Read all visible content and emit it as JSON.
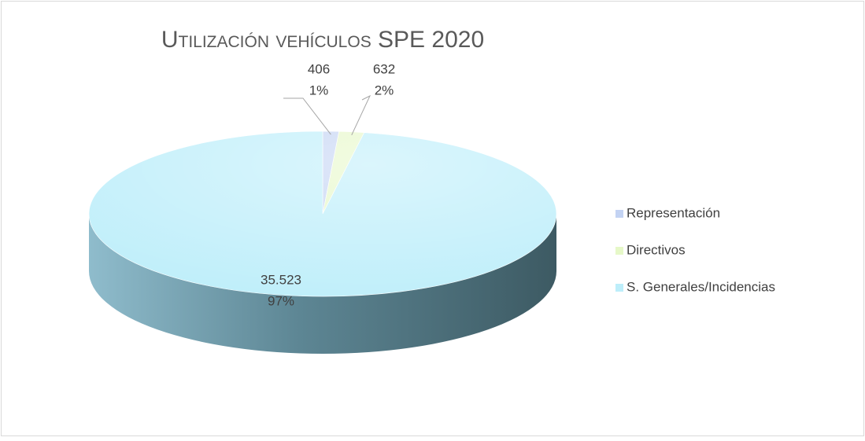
{
  "chart_data": {
    "type": "pie3d",
    "title": "Utilización vehículos SPE 2020",
    "categories": [
      "Representación",
      "Directivos",
      "S. Generales/Incidencias"
    ],
    "values": [
      406,
      632,
      35523
    ],
    "value_labels": [
      "406",
      "632",
      "35.523"
    ],
    "percent_labels": [
      "1%",
      "2%",
      "97%"
    ],
    "colors": [
      "#c3d3f3",
      "#e6f8c8",
      "#bdeefa"
    ],
    "legend": "right"
  }
}
